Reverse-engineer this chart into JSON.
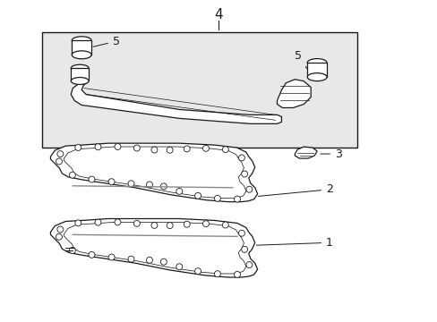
{
  "background_color": "#ffffff",
  "box_bg_color": "#e8e8e8",
  "line_color": "#1a1a1a",
  "gray_line_color": "#888888",
  "figure_width": 4.89,
  "figure_height": 3.6,
  "dpi": 100
}
